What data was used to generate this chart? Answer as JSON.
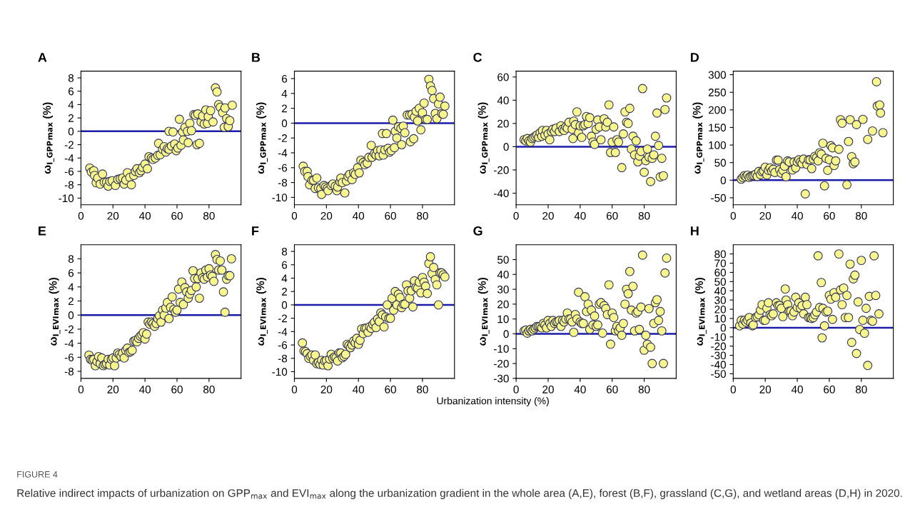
{
  "chart_data": [
    {
      "type": "scatter",
      "title": "A",
      "ylabel": "ω$_{I_GPP}$$_{max}$ (%)",
      "xlim": [
        0,
        100
      ],
      "xticks": [
        0,
        20,
        40,
        60,
        80
      ],
      "ylim": [
        -11,
        9
      ],
      "yticks": [
        -10,
        -8,
        -6,
        -4,
        -2,
        0,
        2,
        4,
        6,
        8
      ],
      "marker": "circle",
      "grid": false,
      "ref_lines": [
        {
          "axis": "y",
          "value": 0,
          "color": "#1c1ca8"
        }
      ],
      "series": [
        {
          "color": "#f6f68c",
          "x": [
            5.5,
            6.5,
            8,
            8.5,
            9.5,
            10.5,
            12,
            13.5,
            14.5,
            16,
            17,
            18,
            19.5,
            21.5,
            23,
            24.5,
            26,
            27,
            28,
            29,
            30.5,
            31.5,
            33,
            34,
            35,
            36.5,
            37.5,
            38.5,
            40,
            41.5,
            42.5,
            44,
            45,
            46.5,
            48,
            48.5,
            49.5,
            51,
            52,
            53,
            54,
            55,
            55,
            56.5,
            57.5,
            58.5,
            59.5,
            60.5,
            61.5,
            62.5,
            63.5,
            64,
            65,
            66.5,
            67,
            68,
            69,
            70.5,
            71.5,
            72.5,
            73,
            74,
            75,
            76,
            77,
            78,
            79,
            79.5,
            81,
            82.5,
            84,
            85,
            86,
            87,
            88.5,
            89.5,
            90,
            91,
            92,
            93,
            94.5
          ],
          "values": [
            -5.5,
            -6.1,
            -5.9,
            -6.6,
            -7.7,
            -7.0,
            -7.9,
            -6.4,
            -7.6,
            -7.6,
            -8.2,
            -7.5,
            -7.4,
            -8.1,
            -7.2,
            -7.1,
            -7.0,
            -7.9,
            -7.3,
            -6.2,
            -6.9,
            -8.0,
            -6.6,
            -6.0,
            -5.6,
            -6.2,
            -5.9,
            -5.4,
            -4.9,
            -5.6,
            -3.8,
            -4.0,
            -4.2,
            -4.0,
            -3.6,
            -1.8,
            -3.5,
            -2.7,
            -2.3,
            -3.1,
            -2.6,
            -2.7,
            0,
            -2.2,
            -0.1,
            -1.9,
            -2.9,
            -2.5,
            1.8,
            -2.1,
            -0.1,
            -1.3,
            0.6,
            0.0,
            -1.7,
            1.2,
            0.1,
            2.5,
            2.4,
            -2.0,
            2.6,
            -1.8,
            1.4,
            2.3,
            1.1,
            3.2,
            1.2,
            2.2,
            3.1,
            1.4,
            6.5,
            5.9,
            4.0,
            3.6,
            2.8,
            0.6,
            3.5,
            1.9,
            0.7,
            1.6,
            3.9
          ]
        }
      ]
    },
    {
      "type": "scatter",
      "title": "B",
      "ylabel": "ω$_{I_GPP}$$_{max}$ (%)",
      "xlim": [
        0,
        100
      ],
      "xticks": [
        0,
        20,
        40,
        60,
        80
      ],
      "ylim": [
        -11,
        7
      ],
      "yticks": [
        -10,
        -8,
        -6,
        -4,
        -2,
        0,
        2,
        4,
        6
      ],
      "marker": "circle",
      "grid": false,
      "ref_lines": [
        {
          "axis": "y",
          "value": 0,
          "color": "#1c1ca8"
        }
      ],
      "series": [
        {
          "color": "#f6f68c",
          "x": [
            5.5,
            6.5,
            8,
            8.5,
            9.5,
            11,
            12,
            13,
            14,
            15,
            16.5,
            17,
            18.5,
            19.5,
            20.5,
            21,
            23,
            24,
            25.5,
            26.5,
            27,
            28.5,
            29,
            30,
            31.5,
            32.5,
            33.5,
            34.5,
            36,
            37,
            38,
            39.5,
            40.5,
            41.5,
            43,
            44,
            45.5,
            46.5,
            48,
            48.5,
            50,
            51,
            52,
            53,
            54,
            55,
            55.5,
            56.5,
            57.5,
            58.5,
            59.5,
            60.5,
            61.5,
            62.5,
            63,
            64,
            65,
            66.5,
            67,
            68,
            69,
            70.5,
            72,
            72.5,
            73.5,
            74.5,
            75,
            76,
            77,
            78,
            79,
            80,
            81,
            82,
            83,
            84,
            85,
            86,
            87,
            88,
            89,
            90,
            91,
            92,
            93,
            94
          ],
          "values": [
            -5.8,
            -6.5,
            -6.5,
            -7.2,
            -8.3,
            -7.7,
            -7.7,
            -8.8,
            -7.4,
            -8.7,
            -8.8,
            -9.6,
            -8.4,
            -8.6,
            -8.8,
            -9.1,
            -8.4,
            -8.2,
            -8.5,
            -9.1,
            -8.6,
            -7.9,
            -7.4,
            -8.0,
            -9.4,
            -7.8,
            -7.2,
            -6.9,
            -7.6,
            -6.7,
            -6.9,
            -6.0,
            -6.7,
            -5.0,
            -5.3,
            -5.6,
            -5.4,
            -4.6,
            -3.0,
            -4.6,
            -4.1,
            -4.3,
            -3.7,
            -4.4,
            -3.6,
            -1.4,
            -4.3,
            -3.6,
            -1.4,
            -3.4,
            -3.9,
            -3.7,
            0.4,
            -3.3,
            -1.1,
            -2.0,
            -0.5,
            -0.7,
            -2.9,
            -0.4,
            -1.3,
            1.1,
            1.1,
            -2.5,
            1.2,
            -2.1,
            0.8,
            1.6,
            0.3,
            2.0,
            -0.9,
            1.4,
            2.7,
            0.5,
            0.5,
            5.9,
            5.0,
            4.4,
            3.3,
            1.3,
            0.6,
            2.6,
            3.5,
            1.3,
            1.2,
            2.3
          ]
        }
      ]
    },
    {
      "type": "scatter",
      "title": "C",
      "ylabel": "ω$_{I_GPP}$$_{max}$ (%)",
      "xlim": [
        0,
        100
      ],
      "xticks": [
        0,
        20,
        40,
        60,
        80
      ],
      "ylim": [
        -50,
        65
      ],
      "yticks": [
        -40,
        -20,
        0,
        20,
        40,
        60
      ],
      "marker": "circle",
      "grid": false,
      "ref_lines": [
        {
          "axis": "y",
          "value": 0,
          "color": "#1c1ca8"
        }
      ],
      "series": [
        {
          "color": "#f6f68c",
          "x": [
            5,
            6,
            7,
            8,
            9,
            10,
            11,
            12,
            13,
            14,
            15,
            16,
            16.5,
            18,
            19,
            20,
            21,
            22,
            23,
            24,
            25,
            27,
            28,
            29,
            30,
            31,
            32,
            33,
            35,
            35.5,
            36,
            37,
            38,
            39,
            40,
            41,
            42,
            43,
            44,
            45,
            46,
            47,
            48,
            49,
            50,
            51,
            52,
            53,
            55,
            56,
            57,
            58,
            59,
            60,
            61,
            62,
            63,
            64,
            66,
            67,
            68,
            69,
            70,
            71,
            72,
            73,
            74,
            75,
            76,
            77,
            78,
            79,
            80,
            81,
            82,
            83,
            84,
            85,
            86,
            87,
            88,
            89,
            90,
            91,
            92,
            93,
            94
          ],
          "values": [
            6,
            5,
            7,
            5,
            4,
            7,
            8,
            9,
            10,
            8,
            12,
            9,
            14,
            10,
            14,
            11,
            6,
            13,
            15,
            13,
            16,
            13,
            18,
            15,
            14,
            17,
            16,
            21,
            15,
            7,
            22,
            19,
            30,
            12,
            18,
            8,
            18,
            19,
            26,
            20,
            25,
            9,
            4,
            2,
            15,
            23,
            17,
            6,
            24,
            17,
            21,
            36,
            -5,
            4,
            17,
            -5,
            6,
            4,
            -18,
            11,
            30,
            21,
            20,
            33,
            -2,
            9,
            -7,
            5,
            -13,
            -8,
            -4,
            50,
            -22,
            -12,
            -2,
            -9,
            -30,
            -10,
            -7,
            9,
            29,
            1,
            -26,
            -10,
            -25,
            32,
            42
          ]
        }
      ]
    },
    {
      "type": "scatter",
      "title": "D",
      "ylabel": "ω$_{I_GPP}$$_{max}$ (%)",
      "xlim": [
        0,
        100
      ],
      "xticks": [
        0,
        20,
        40,
        60,
        80
      ],
      "ylim": [
        -70,
        310
      ],
      "yticks": [
        -50,
        0,
        50,
        100,
        150,
        200,
        250,
        300
      ],
      "marker": "circle",
      "grid": false,
      "ref_lines": [
        {
          "axis": "y",
          "value": 0,
          "color": "#1c1ca8"
        }
      ],
      "series": [
        {
          "color": "#f6f68c",
          "x": [
            5,
            6,
            7,
            8,
            9,
            10,
            11,
            12,
            13,
            14,
            15,
            16,
            17,
            18,
            19,
            20,
            21,
            22,
            23,
            24,
            25,
            26,
            27,
            28,
            29,
            30,
            31,
            32,
            33,
            34,
            35,
            37,
            38,
            39,
            40,
            41,
            42,
            43,
            44,
            45,
            46,
            47,
            48,
            49,
            50,
            51,
            52,
            53,
            54,
            55,
            56,
            57,
            58,
            59,
            60,
            61,
            62,
            63,
            64,
            66,
            67,
            68,
            71,
            72,
            73,
            74,
            75,
            76,
            77,
            81,
            84,
            87,
            89.5,
            90,
            91.5,
            92,
            93.5
          ],
          "values": [
            3,
            8,
            13,
            10,
            14,
            8,
            11,
            13,
            14,
            17,
            11,
            25,
            16,
            24,
            26,
            37,
            15,
            28,
            35,
            26,
            31,
            22,
            57,
            57,
            30,
            20,
            28,
            40,
            10,
            55,
            52,
            29,
            52,
            35,
            52,
            58,
            52,
            47,
            60,
            -39,
            45,
            58,
            58,
            33,
            60,
            68,
            64,
            55,
            78,
            74,
            105,
            -16,
            62,
            28,
            58,
            98,
            92,
            42,
            55,
            88,
            172,
            162,
            -13,
            110,
            172,
            67,
            47,
            52,
            158,
            173,
            116,
            140,
            280,
            211,
            214,
            191,
            135
          ]
        }
      ]
    },
    {
      "type": "scatter",
      "title": "E",
      "ylabel": "ω$_{I_EVI}$$_{max}$ (%)",
      "xlim": [
        0,
        100
      ],
      "xticks": [
        0,
        20,
        40,
        60,
        80
      ],
      "ylim": [
        -9,
        10
      ],
      "yticks": [
        -8,
        -6,
        -4,
        -2,
        0,
        2,
        4,
        6,
        8
      ],
      "marker": "circle",
      "grid": false,
      "ref_lines": [
        {
          "axis": "y",
          "value": 0,
          "color": "#1c1ca8"
        }
      ],
      "series": [
        {
          "color": "#f6f68c",
          "x": [
            5,
            6,
            7,
            8,
            9,
            10,
            11,
            12,
            13,
            14,
            15,
            16,
            17,
            18,
            19,
            20,
            21,
            22,
            23,
            24,
            25,
            26,
            27,
            28,
            29,
            30,
            31,
            32,
            33,
            34,
            35,
            36,
            37,
            38,
            39,
            40,
            41,
            42,
            43,
            44,
            45,
            46,
            47,
            48,
            49,
            50,
            51,
            52,
            53,
            54,
            55,
            56,
            57,
            58,
            59,
            60,
            61,
            62,
            63,
            64,
            65,
            66,
            67,
            68,
            69,
            70,
            71,
            72,
            73,
            74,
            75,
            76,
            77,
            78,
            79,
            80,
            81,
            82,
            83,
            84,
            85,
            86,
            87,
            88,
            89,
            90,
            91,
            92,
            93,
            94
          ],
          "values": [
            -5.7,
            -6.3,
            -6.4,
            -6.3,
            -7.2,
            -6.6,
            -5.9,
            -6.9,
            -6.1,
            -7.2,
            -7.0,
            -6.9,
            -6.3,
            -7.1,
            -6.3,
            -6.1,
            -7.2,
            -6.1,
            -5.4,
            -5.6,
            -5.9,
            -5.4,
            -6.1,
            -5.0,
            -4.7,
            -5.3,
            -5.2,
            -5.0,
            -3.7,
            -3.6,
            -3.8,
            -3.3,
            -3.0,
            -2.8,
            -2.5,
            -3.4,
            -2.7,
            -1.0,
            -1.3,
            -1.0,
            -1.2,
            -1.6,
            -1.2,
            -0.5,
            -0.1,
            -1.0,
            0.7,
            0.0,
            1.0,
            1.8,
            -0.5,
            1.1,
            2.6,
            0.8,
            0.4,
            0.7,
            3.7,
            1.8,
            4.7,
            1.5,
            3.9,
            3.3,
            2.4,
            3.0,
            3.5,
            6.3,
            5.2,
            4.0,
            5.2,
            2.4,
            6.0,
            5.3,
            5.1,
            6.4,
            5.4,
            6.6,
            5.7,
            5.5,
            4.8,
            8.6,
            7.9,
            6.4,
            7.7,
            6.4,
            3.3,
            0.4,
            5.1,
            5.6,
            5.6,
            8.0
          ]
        }
      ]
    },
    {
      "type": "scatter",
      "title": "F",
      "ylabel": "ω$_{I_EVI}$$_{max}$ (%)",
      "xlabel": "Urbanization intensity (%)",
      "xlim": [
        0,
        100
      ],
      "xticks": [
        0,
        20,
        40,
        60,
        80
      ],
      "ylim": [
        -11,
        9
      ],
      "yticks": [
        -10,
        -8,
        -6,
        -4,
        -2,
        0,
        2,
        4,
        6,
        8
      ],
      "marker": "circle",
      "grid": false,
      "ref_lines": [
        {
          "axis": "y",
          "value": 0,
          "color": "#1c1ca8"
        }
      ],
      "series": [
        {
          "color": "#f6f68c",
          "x": [
            5,
            6,
            7,
            8,
            9,
            10,
            11,
            12,
            13,
            14,
            15,
            16,
            17,
            18,
            19,
            20,
            21,
            22,
            23,
            24,
            25,
            26,
            27,
            28,
            29,
            30,
            31,
            32,
            33,
            34,
            35,
            36,
            37,
            38,
            39,
            40,
            41,
            42,
            43,
            44,
            45,
            46,
            47,
            48,
            49,
            50,
            51,
            52,
            53,
            54,
            55,
            56,
            57,
            58,
            59,
            60,
            61,
            62,
            63,
            64,
            65,
            66,
            67,
            68,
            69,
            70,
            71,
            72,
            73,
            74,
            75,
            76,
            77,
            78,
            79,
            80,
            81,
            82,
            83,
            84,
            85,
            86,
            87,
            88,
            89,
            90,
            91,
            92,
            93,
            94
          ],
          "values": [
            -5.7,
            -6.9,
            -7.0,
            -7.3,
            -8.0,
            -7.7,
            -7.5,
            -8.3,
            -7.5,
            -8.8,
            -8.6,
            -8.9,
            -8.3,
            -9.0,
            -8.4,
            -8.3,
            -9.1,
            -8.1,
            -7.4,
            -8.0,
            -7.8,
            -7.9,
            -8.4,
            -7.2,
            -7.2,
            -7.9,
            -7.7,
            -7.4,
            -5.9,
            -6.1,
            -6.4,
            -6.0,
            -5.4,
            -5.7,
            -5.0,
            -5.9,
            -5.3,
            -3.6,
            -4.3,
            -3.5,
            -3.5,
            -4.1,
            -3.3,
            -3.5,
            -2.9,
            -2.6,
            -3.4,
            -2.1,
            -2.5,
            -1.2,
            -1.5,
            -3.3,
            -1.8,
            0.0,
            -2.0,
            -2.0,
            1.0,
            -0.8,
            2.0,
            0.0,
            1.6,
            1.1,
            -0.4,
            0.1,
            0.1,
            3.0,
            2.1,
            1.0,
            2.1,
            -0.3,
            3.6,
            2.6,
            2.5,
            3.4,
            1.8,
            4.1,
            3.4,
            2.8,
            1.7,
            6.2,
            7.2,
            4.7,
            5.6,
            3.8,
            3.0,
            0.0,
            4.8,
            4.8,
            4.5,
            4.2
          ]
        }
      ]
    },
    {
      "type": "scatter",
      "title": "G",
      "ylabel": "ω$_{I_EVI}$$_{max}$ (%)",
      "xlim": [
        0,
        100
      ],
      "xticks": [
        0,
        20,
        40,
        60,
        80
      ],
      "ylim": [
        -30,
        60
      ],
      "yticks": [
        -30,
        -20,
        -10,
        0,
        10,
        20,
        30,
        40,
        50
      ],
      "marker": "circle",
      "grid": false,
      "ref_lines": [
        {
          "axis": "y",
          "value": 0,
          "color": "#1c1ca8"
        }
      ],
      "series": [
        {
          "color": "#f6f68c",
          "x": [
            5,
            6,
            7,
            8,
            9,
            10,
            11,
            12,
            13,
            14,
            15,
            16,
            17,
            18,
            19,
            20,
            21,
            22,
            23,
            24,
            25,
            26,
            27,
            28,
            29,
            30,
            31,
            32,
            33,
            34,
            35,
            36,
            37,
            38,
            39,
            40,
            41,
            42,
            43,
            44,
            45,
            46,
            47,
            48,
            49,
            50,
            51,
            52,
            53,
            54,
            55,
            56,
            57,
            58,
            59,
            60,
            61,
            62,
            63,
            64,
            65,
            66,
            67,
            68,
            69,
            70,
            71,
            72,
            73,
            74,
            75,
            76,
            77,
            78,
            79,
            80,
            81,
            82,
            83,
            84,
            85,
            86,
            87,
            88,
            89,
            90,
            91,
            92,
            93,
            94
          ],
          "values": [
            2,
            2.5,
            0.5,
            2,
            3,
            2,
            3,
            4,
            5,
            5,
            5,
            4,
            7,
            6,
            4,
            9,
            7,
            5,
            9,
            7,
            8,
            8,
            9,
            5,
            9,
            8,
            10,
            14,
            10,
            10,
            8,
            1,
            13,
            10,
            28,
            8,
            7,
            7,
            25,
            15,
            20,
            3,
            16,
            6,
            12,
            5,
            6,
            20,
            21,
            0.5,
            19,
            17,
            13,
            33,
            -7,
            14,
            11,
            2,
            5,
            2,
            4,
            -1,
            7,
            20,
            30,
            27,
            42,
            16,
            32,
            2,
            14,
            15,
            3,
            18,
            53,
            -11,
            -1,
            -7,
            17,
            -9,
            -20,
            7,
            21,
            23,
            9,
            15,
            2,
            -20,
            41,
            51
          ]
        }
      ]
    },
    {
      "type": "scatter",
      "title": "H",
      "ylabel": "ω$_{I_EVI}$$_{max}$ (%)",
      "xlim": [
        0,
        100
      ],
      "xticks": [
        0,
        20,
        40,
        60,
        80
      ],
      "ylim": [
        -55,
        90
      ],
      "yticks": [
        -50,
        -40,
        -30,
        -20,
        -10,
        0,
        10,
        20,
        30,
        40,
        50,
        60,
        70,
        80
      ],
      "marker": "circle",
      "grid": false,
      "ref_lines": [
        {
          "axis": "y",
          "value": 0,
          "color": "#1c1ca8"
        }
      ],
      "series": [
        {
          "color": "#f6f68c",
          "x": [
            4,
            5,
            6,
            7,
            8,
            9,
            10,
            11,
            12,
            12.5,
            14,
            15,
            16,
            17,
            18,
            19,
            20,
            21,
            22,
            23,
            24,
            25,
            27,
            28,
            29,
            30,
            31,
            32.5,
            33,
            34,
            35,
            36,
            37,
            38,
            39,
            40,
            41,
            42,
            43,
            44,
            45,
            46,
            47,
            48,
            49,
            50,
            51,
            52,
            53,
            54,
            55,
            56,
            55.5,
            57,
            58,
            59,
            60,
            61,
            62,
            63,
            64,
            66,
            67,
            68,
            69,
            70,
            71,
            72,
            73,
            74,
            75,
            76,
            77,
            78,
            79,
            80,
            81,
            82,
            83,
            84,
            85,
            86,
            87,
            88,
            89,
            91
          ],
          "values": [
            2,
            8,
            4,
            8,
            6,
            8,
            11,
            5,
            2,
            3,
            11,
            12,
            14,
            19,
            25,
            8,
            8,
            21,
            27,
            14,
            13,
            15,
            27,
            24,
            24,
            21,
            12,
            42,
            30,
            25,
            18,
            18,
            13,
            17,
            33,
            22,
            27,
            21,
            24,
            15,
            33,
            25,
            11,
            11,
            10,
            11,
            14,
            17,
            78,
            22,
            49,
            21,
            -11,
            2,
            17,
            18,
            35,
            31,
            9,
            38,
            33,
            80,
            41,
            25,
            43,
            11,
            35,
            11,
            69,
            -16,
            53,
            57,
            -28,
            28,
            -2,
            73,
            8,
            -6,
            21,
            -41,
            34,
            8,
            7,
            78,
            35,
            15
          ]
        }
      ],
      "annotations": [
        "FIGURE 4",
        "Relative indirect impacts of urbanization on GPP$_{max}$ and EVI$_{max}$ along the urbanization gradient in the whole area (A,E), forest (B,F), grassland (C,G), and wetland areas (D,H) in 2020."
      ]
    }
  ]
}
